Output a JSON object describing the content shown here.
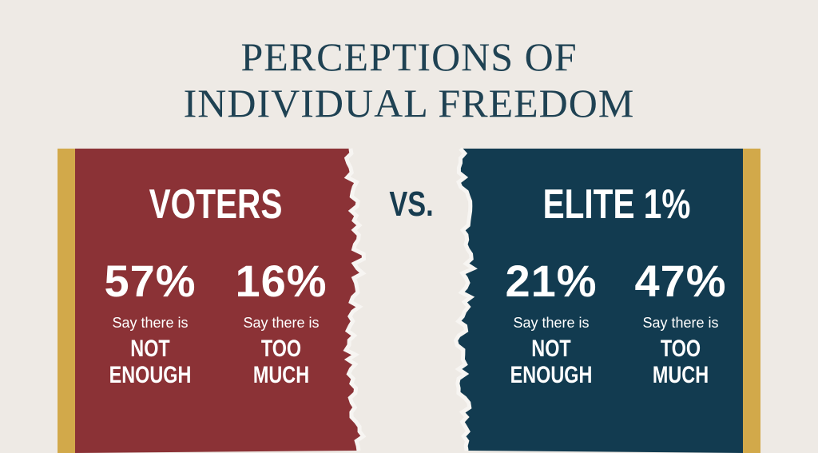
{
  "title": [
    "PERCEPTIONS OF",
    "INDIVIDUAL FREEDOM"
  ],
  "vs": "VS.",
  "panels": [
    {
      "heading": "VOTERS",
      "stats": [
        {
          "value": "57%",
          "caption": "Say there is",
          "label": [
            "NOT",
            "ENOUGH"
          ]
        },
        {
          "value": "16%",
          "caption": "Say there is",
          "label": [
            "TOO",
            "MUCH"
          ]
        }
      ]
    },
    {
      "heading": "ELITE 1%",
      "stats": [
        {
          "value": "21%",
          "caption": "Say there is",
          "label": [
            "NOT",
            "ENOUGH"
          ]
        },
        {
          "value": "47%",
          "caption": "Say there is",
          "label": [
            "TOO",
            "MUCH"
          ]
        }
      ]
    }
  ]
}
